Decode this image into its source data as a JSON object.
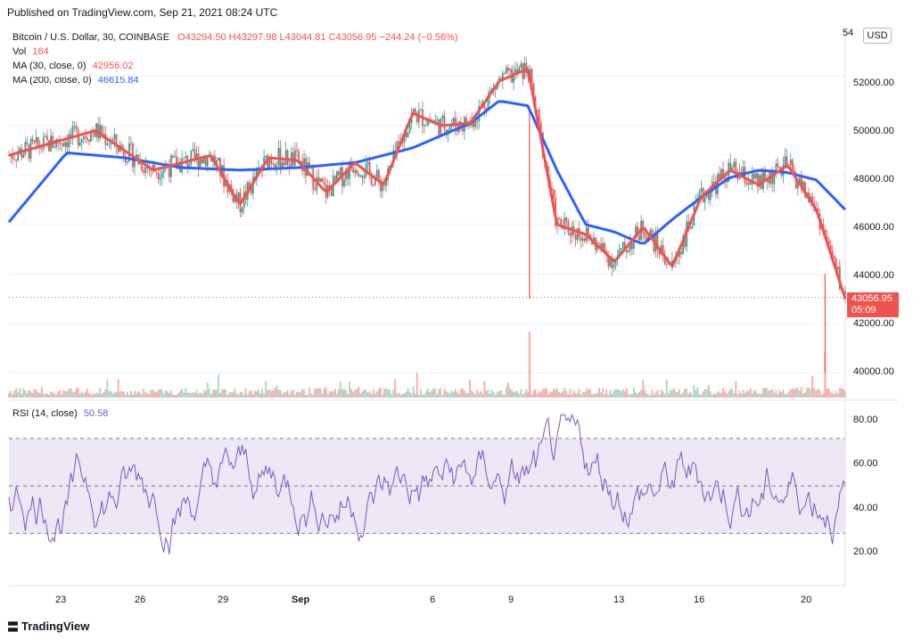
{
  "header": {
    "published": "Published on TradingView.com, Sep 21, 2021 08:24 UTC"
  },
  "legend": {
    "symbol": "Bitcoin / U.S. Dollar, 30, COINBASE",
    "ohlc": "O43294.50  H43297.98  L43044.81  C43056.95  −244.24 (−0.56%)",
    "vol_label": "Vol",
    "vol_value": "164",
    "ma30_label": "MA (30, close, 0)",
    "ma30_value": "42956.02",
    "ma200_label": "MA (200, close, 0)",
    "ma200_value": "46615.84"
  },
  "rsi_legend": {
    "label": "RSI (14, close)",
    "value": "50.58"
  },
  "price_axis": {
    "currency_badge": "USD",
    "top_cut_label": "54",
    "ticks": [
      "52000.00",
      "50000.00",
      "48000.00",
      "46000.00",
      "44000.00",
      "42000.00",
      "40000.00"
    ],
    "last_price": "43056.95",
    "countdown": "05:09"
  },
  "rsi_axis": {
    "ticks": [
      "80.00",
      "60.00",
      "40.00",
      "20.00"
    ]
  },
  "time_axis": {
    "ticks": [
      "23",
      "26",
      "29",
      "Sep",
      "6",
      "9",
      "13",
      "16",
      "20"
    ]
  },
  "colors": {
    "candle_up": "#26a69a",
    "candle_down": "#ef5350",
    "ma30": "#ef5350",
    "ma200": "#2962ff",
    "rsi_line": "#7e57c2",
    "rsi_band": "#ede7f6"
  },
  "branding": {
    "logo_text": "TradingView"
  },
  "chart_data": {
    "type": "line",
    "price_pane": {
      "ylim": [
        39000,
        54000
      ],
      "series": [
        {
          "name": "MA (30, close, 0)",
          "x": [
            0,
            3,
            5,
            7,
            8,
            9,
            10,
            11,
            12,
            13,
            14,
            15,
            16,
            17,
            18,
            19,
            20,
            21,
            22,
            23,
            24,
            25,
            26,
            27,
            28,
            29
          ],
          "y": [
            48800,
            49800,
            48200,
            48800,
            46800,
            48700,
            48600,
            47300,
            48500,
            47600,
            50500,
            50000,
            50100,
            51800,
            52300,
            46000,
            45600,
            44500,
            45900,
            44300,
            47100,
            48200,
            47600,
            48400,
            46600,
            43000
          ]
        },
        {
          "name": "MA (200, close, 0)",
          "x": [
            0,
            2,
            4,
            6,
            8,
            10,
            12,
            14,
            16,
            17,
            18,
            19,
            20,
            21,
            22,
            23,
            24,
            25,
            26,
            27,
            28,
            29
          ],
          "y": [
            46100,
            48900,
            48700,
            48300,
            48200,
            48300,
            48500,
            49100,
            50100,
            51000,
            50800,
            48200,
            46000,
            45700,
            45200,
            46200,
            47100,
            47900,
            48200,
            48100,
            47800,
            46600
          ]
        }
      ]
    },
    "rsi_pane": {
      "ylim": [
        8,
        85
      ],
      "overbought": 70,
      "oversold": 30,
      "midline": 50,
      "last": 50.58
    }
  }
}
